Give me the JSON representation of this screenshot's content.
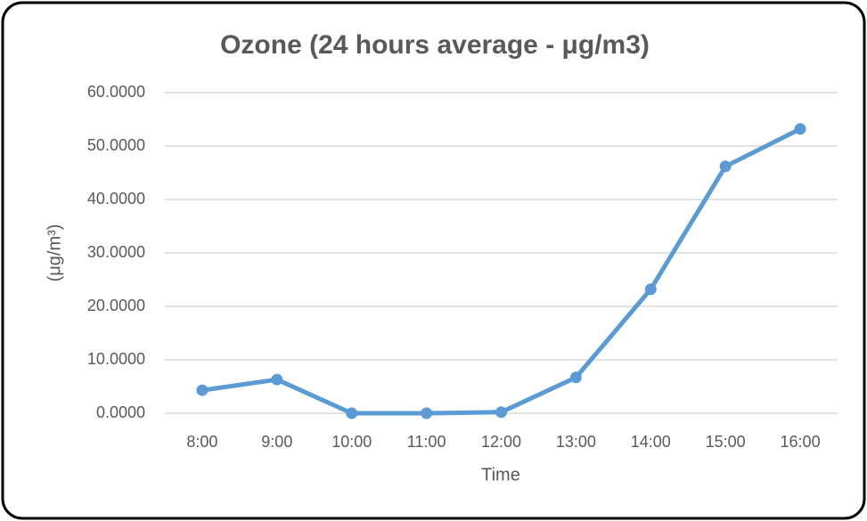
{
  "chart_data": {
    "type": "line",
    "title": "Ozone (24 hours average - μg/m3)",
    "x_label": "Time",
    "y_label": "(μg/m³)",
    "categories": [
      "8:00",
      "9:00",
      "10:00",
      "11:00",
      "12:00",
      "13:00",
      "14:00",
      "15:00",
      "16:00"
    ],
    "series": [
      {
        "name": "Ozone",
        "color": "#5b9bd5",
        "values": [
          4.3,
          6.3,
          0,
          0,
          0.2,
          6.7,
          23.2,
          46.2,
          53.2
        ]
      }
    ],
    "ylim": [
      0,
      60
    ],
    "yticks": [
      {
        "value": 0,
        "label": "0.0000"
      },
      {
        "value": 10,
        "label": "10.0000"
      },
      {
        "value": 20,
        "label": "20.0000"
      },
      {
        "value": 30,
        "label": "30.0000"
      },
      {
        "value": 40,
        "label": "40.0000"
      },
      {
        "value": 50,
        "label": "50.0000"
      },
      {
        "value": 60,
        "label": "60.0000"
      }
    ],
    "grid": true
  }
}
